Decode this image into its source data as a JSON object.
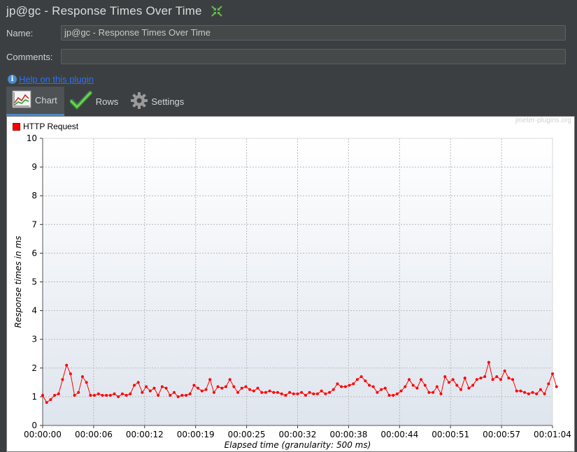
{
  "window": {
    "title": "jp@gc - Response Times Over Time"
  },
  "form": {
    "name_label": "Name:",
    "name_value": "jp@gc - Response Times Over Time",
    "comments_label": "Comments:",
    "comments_value": ""
  },
  "help": {
    "link_text": "Help on this plugin"
  },
  "tabs": [
    {
      "label": "Chart",
      "icon": "chart-icon",
      "active": true
    },
    {
      "label": "Rows",
      "icon": "checkmark-icon",
      "active": false
    },
    {
      "label": "Settings",
      "icon": "gear-icon",
      "active": false
    }
  ],
  "watermark": "jmeter-plugins.org",
  "chart_data": {
    "type": "line",
    "title": "",
    "xlabel": "Elapsed time (granularity: 500 ms)",
    "ylabel": "Response times in ms",
    "ylim": [
      0,
      10
    ],
    "xlim_seconds": [
      0,
      64
    ],
    "x_ticks": [
      "00:00:00",
      "00:00:06",
      "00:00:12",
      "00:00:19",
      "00:00:25",
      "00:00:32",
      "00:00:38",
      "00:00:44",
      "00:00:51",
      "00:00:57",
      "00:01:04"
    ],
    "y_ticks": [
      "0",
      "1",
      "2",
      "3",
      "4",
      "5",
      "6",
      "7",
      "8",
      "9",
      "10"
    ],
    "grid": true,
    "legend_position": "top-left",
    "series": [
      {
        "name": "HTTP Request",
        "color": "#ff0000",
        "interval_seconds": 0.5,
        "values": [
          1.05,
          0.8,
          0.9,
          1.05,
          1.1,
          1.6,
          2.1,
          1.8,
          1.05,
          1.15,
          1.7,
          1.5,
          1.05,
          1.05,
          1.1,
          1.05,
          1.05,
          1.05,
          1.1,
          1.0,
          1.1,
          1.05,
          1.1,
          1.4,
          1.5,
          1.15,
          1.35,
          1.2,
          1.3,
          1.05,
          1.35,
          1.3,
          1.05,
          1.15,
          1.0,
          1.05,
          1.05,
          1.1,
          1.4,
          1.3,
          1.2,
          1.25,
          1.6,
          1.15,
          1.35,
          1.3,
          1.35,
          1.6,
          1.35,
          1.15,
          1.3,
          1.35,
          1.25,
          1.2,
          1.3,
          1.15,
          1.15,
          1.2,
          1.15,
          1.15,
          1.1,
          1.05,
          1.15,
          1.1,
          1.1,
          1.15,
          1.05,
          1.15,
          1.1,
          1.1,
          1.2,
          1.1,
          1.15,
          1.25,
          1.45,
          1.35,
          1.35,
          1.4,
          1.45,
          1.6,
          1.7,
          1.55,
          1.4,
          1.35,
          1.15,
          1.25,
          1.3,
          1.05,
          1.05,
          1.1,
          1.2,
          1.35,
          1.6,
          1.4,
          1.3,
          1.6,
          1.4,
          1.15,
          1.15,
          1.35,
          1.1,
          1.7,
          1.5,
          1.6,
          1.4,
          1.25,
          1.65,
          1.3,
          1.4,
          1.6,
          1.65,
          1.7,
          2.2,
          1.6,
          1.7,
          1.6,
          1.9,
          1.65,
          1.6,
          1.2,
          1.2,
          1.15,
          1.1,
          1.15,
          1.1,
          1.25,
          1.1,
          1.45,
          1.8,
          1.35
        ]
      }
    ]
  }
}
